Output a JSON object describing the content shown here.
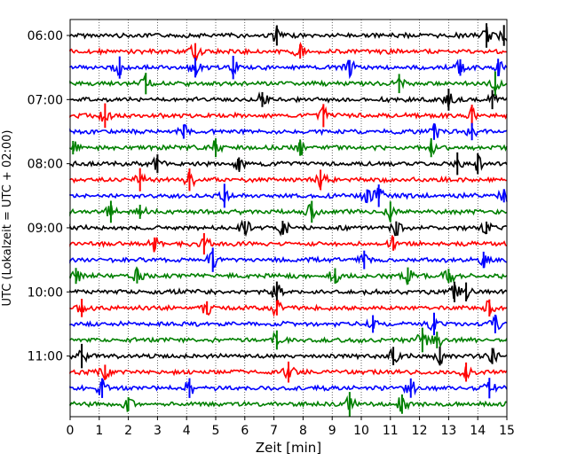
{
  "chart_data": {
    "type": "line",
    "title": "",
    "xlabel": "Zeit  [min]",
    "ylabel": "UTC (Lokalzeit = UTC + 02:00)",
    "xlim": [
      0,
      15
    ],
    "x_ticks": [
      "0",
      "1",
      "2",
      "3",
      "4",
      "5",
      "6",
      "7",
      "8",
      "9",
      "10",
      "11",
      "12",
      "13",
      "14",
      "15"
    ],
    "y_ticks": [
      "06:00",
      "07:00",
      "08:00",
      "09:00",
      "10:00",
      "11:00"
    ],
    "grid": "vertical dotted",
    "row_minutes": 15,
    "trace_colors": [
      "#000000",
      "#ff0000",
      "#0000ff",
      "#008000"
    ],
    "rows": [
      {
        "start": "06:00",
        "events_min": [
          7.1,
          14.3,
          14.9
        ]
      },
      {
        "start": "06:15",
        "events_min": [
          4.3,
          7.9
        ]
      },
      {
        "start": "06:30",
        "events_min": [
          1.7,
          4.3,
          5.6,
          9.6,
          13.4,
          14.7
        ]
      },
      {
        "start": "06:45",
        "events_min": [
          2.6,
          11.3,
          14.6
        ]
      },
      {
        "start": "07:00",
        "events_min": [
          6.6,
          13.0,
          14.5
        ]
      },
      {
        "start": "07:15",
        "events_min": [
          1.2,
          8.7,
          13.8
        ]
      },
      {
        "start": "07:30",
        "events_min": [
          3.9,
          12.5,
          13.8
        ]
      },
      {
        "start": "07:45",
        "events_min": [
          0.1,
          5.0,
          7.9,
          12.4
        ]
      },
      {
        "start": "08:00",
        "events_min": [
          3.0,
          5.8,
          13.3,
          14.0
        ]
      },
      {
        "start": "08:15",
        "events_min": [
          2.4,
          4.1,
          8.6
        ]
      },
      {
        "start": "08:30",
        "events_min": [
          5.3,
          10.2,
          10.6,
          14.9
        ]
      },
      {
        "start": "08:45",
        "events_min": [
          1.4,
          2.4,
          8.3,
          11.0
        ]
      },
      {
        "start": "09:00",
        "events_min": [
          6.0,
          7.3,
          11.2,
          14.3
        ]
      },
      {
        "start": "09:15",
        "events_min": [
          2.9,
          4.6,
          11.1
        ]
      },
      {
        "start": "09:30",
        "events_min": [
          4.9,
          10.1,
          14.2
        ]
      },
      {
        "start": "09:45",
        "events_min": [
          0.2,
          2.3,
          9.1,
          11.6,
          13.0
        ]
      },
      {
        "start": "10:00",
        "events_min": [
          7.1,
          13.2,
          13.6
        ]
      },
      {
        "start": "10:15",
        "events_min": [
          0.4,
          4.7,
          7.1,
          14.4
        ]
      },
      {
        "start": "10:30",
        "events_min": [
          10.4,
          12.5,
          14.6
        ]
      },
      {
        "start": "10:45",
        "events_min": [
          7.1,
          12.1,
          12.6
        ]
      },
      {
        "start": "11:00",
        "events_min": [
          0.4,
          11.1,
          12.7,
          14.5
        ]
      },
      {
        "start": "11:15",
        "events_min": [
          1.2,
          7.5,
          13.6
        ]
      },
      {
        "start": "11:30",
        "events_min": [
          1.1,
          4.1,
          11.7,
          14.4
        ]
      },
      {
        "start": "11:45",
        "events_min": [
          2.0,
          9.6,
          11.4
        ]
      }
    ]
  }
}
